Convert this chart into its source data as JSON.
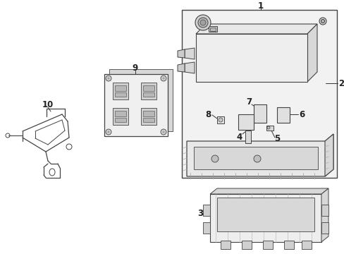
{
  "background_color": "#ffffff",
  "line_color": "#444444",
  "fill_light": "#f2f2f2",
  "fill_mid": "#e0e0e0",
  "fill_dark": "#cccccc",
  "hatch_color": "#bbbbbb"
}
